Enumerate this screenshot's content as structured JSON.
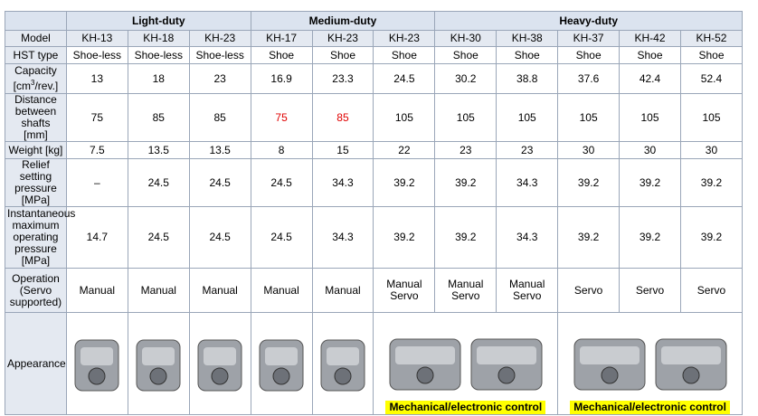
{
  "table": {
    "groups": [
      {
        "label": "Light-duty",
        "span": 3
      },
      {
        "label": "Medium-duty",
        "span": 3
      },
      {
        "label": "Heavy-duty",
        "span": 5
      }
    ],
    "rows": [
      {
        "label": "Model",
        "cells": [
          "KH-13",
          "KH-18",
          "KH-23",
          "KH-17",
          "KH-23",
          "KH-23",
          "KH-30",
          "KH-38",
          "KH-37",
          "KH-42",
          "KH-52"
        ]
      },
      {
        "label": "HST type",
        "cells": [
          "Shoe-less",
          "Shoe-less",
          "Shoe-less",
          "Shoe",
          "Shoe",
          "Shoe",
          "Shoe",
          "Shoe",
          "Shoe",
          "Shoe",
          "Shoe"
        ]
      },
      {
        "label": "Capacity\n[cm",
        "label_sup": "3",
        "label_after": "/rev.]",
        "cells": [
          "13",
          "18",
          "23",
          "16.9",
          "23.3",
          "24.5",
          "30.2",
          "38.8",
          "37.6",
          "42.4",
          "52.4"
        ]
      },
      {
        "label": "Distance\nbetween shafts\n[mm]",
        "cells": [
          "75",
          "85",
          "85",
          "75",
          "85",
          "105",
          "105",
          "105",
          "105",
          "105",
          "105"
        ]
      },
      {
        "label": "Weight [kg]",
        "cells": [
          "7.5",
          "13.5",
          "13.5",
          "8",
          "15",
          "22",
          "23",
          "23",
          "30",
          "30",
          "30"
        ]
      },
      {
        "label": "Relief setting\npressure [MPa]",
        "cells": [
          "–",
          "24.5",
          "24.5",
          "24.5",
          "34.3",
          "39.2",
          "39.2",
          "34.3",
          "39.2",
          "39.2",
          "39.2"
        ]
      },
      {
        "label": "Instantaneous\nmaximum\noperating\npressure [MPa]",
        "cells": [
          "14.7",
          "24.5",
          "24.5",
          "24.5",
          "34.3",
          "39.2",
          "39.2",
          "34.3",
          "39.2",
          "39.2",
          "39.2"
        ]
      },
      {
        "label": "Operation\n(Servo\nsupported)",
        "cells": [
          "Manual",
          "Manual",
          "Manual",
          "Manual",
          "Manual",
          "Manual\nServo",
          "Manual\nServo",
          "Manual\nServo",
          "Servo",
          "Servo",
          "Servo"
        ]
      }
    ],
    "emphasis_color": "#e00000",
    "emphasized": [
      [
        3,
        3
      ],
      [
        3,
        4
      ]
    ],
    "appearance": {
      "label": "Appearance",
      "captions": [
        {
          "text": "Mechanical/electronic control",
          "span": 3
        },
        {
          "text": "Mechanical/electronic control",
          "span": 3
        }
      ]
    }
  }
}
